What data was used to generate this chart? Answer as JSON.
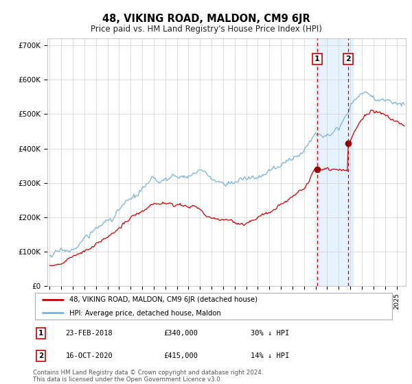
{
  "title": "48, VIKING ROAD, MALDON, CM9 6JR",
  "subtitle": "Price paid vs. HM Land Registry's House Price Index (HPI)",
  "ylim": [
    0,
    720000
  ],
  "hpi_color": "#7ab3d4",
  "price_color": "#cc0000",
  "marker_color": "#990000",
  "vline_color": "#cc0000",
  "highlight_fill": "#ddeeff",
  "sale1_year": 2018.12,
  "sale2_year": 2020.79,
  "sale1_price": 340000,
  "sale2_price": 415000,
  "sale1_date": "23-FEB-2018",
  "sale2_date": "16-OCT-2020",
  "sale1_pct": "30% ↓ HPI",
  "sale2_pct": "14% ↓ HPI",
  "legend_label1": "48, VIKING ROAD, MALDON, CM9 6JR (detached house)",
  "legend_label2": "HPI: Average price, detached house, Maldon",
  "footnote": "Contains HM Land Registry data © Crown copyright and database right 2024.\nThis data is licensed under the Open Government Licence v3.0.",
  "xstart_year": 1995,
  "xend_year": 2025
}
